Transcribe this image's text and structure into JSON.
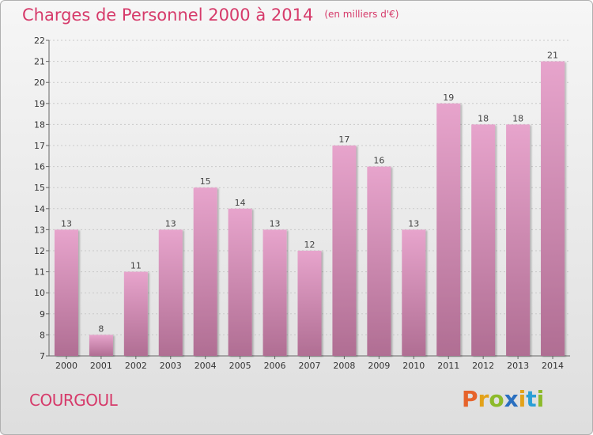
{
  "header": {
    "title": "Charges de Personnel 2000 à 2014",
    "subtitle": "(en milliers d'€)"
  },
  "footer": {
    "commune": "COURGOUL",
    "brand": "Proxiti"
  },
  "colors": {
    "title": "#d63a6a",
    "bar_top": "#e7a4cc",
    "bar_bottom": "#b06e93",
    "brand_letters": [
      "#e6632b",
      "#e3a21a",
      "#8cba2a",
      "#2a6fc0",
      "#e3a21a",
      "#2a9fd6",
      "#8cba2a"
    ]
  },
  "chart_data": {
    "type": "bar",
    "categories": [
      "2000",
      "2001",
      "2002",
      "2003",
      "2004",
      "2005",
      "2006",
      "2007",
      "2008",
      "2009",
      "2010",
      "2011",
      "2012",
      "2013",
      "2014"
    ],
    "values": [
      13,
      8,
      11,
      13,
      15,
      14,
      13,
      12,
      17,
      16,
      13,
      19,
      18,
      18,
      21
    ],
    "title": "Charges de Personnel 2000 à 2014",
    "subtitle": "(en milliers d'€)",
    "xlabel": "",
    "ylabel": "",
    "ylim": [
      7,
      22
    ],
    "yticks": [
      7,
      8,
      9,
      10,
      11,
      12,
      13,
      14,
      15,
      16,
      17,
      18,
      19,
      20,
      21,
      22
    ],
    "grid": true,
    "data_labels": true
  }
}
